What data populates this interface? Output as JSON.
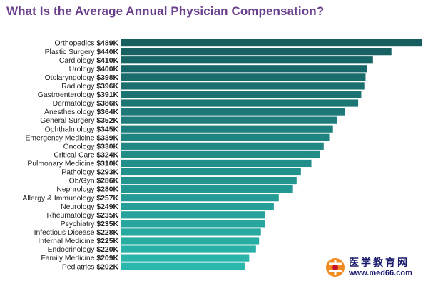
{
  "chart_data": {
    "type": "bar",
    "orientation": "horizontal",
    "title": "What Is the Average Annual Physician Compensation?",
    "categories": [
      "Orthopedics",
      "Plastic Surgery",
      "Cardiology",
      "Urology",
      "Otolaryngology",
      "Radiology",
      "Gastroenterology",
      "Dermatology",
      "Anesthesiology",
      "General Surgery",
      "Ophthalmology",
      "Emergency Medicine",
      "Oncology",
      "Critical Care",
      "Pulmonary Medicine",
      "Pathology",
      "Ob/Gyn",
      "Nephrology",
      "Allergy & Immunology",
      "Neurology",
      "Rheumatology",
      "Psychiatry",
      "Infectious Disease",
      "Internal Medicine",
      "Endocrinology",
      "Family Medicine",
      "Pediatrics"
    ],
    "value_labels": [
      "$489K",
      "$440K",
      "$410K",
      "$400K",
      "$398K",
      "$396K",
      "$391K",
      "$386K",
      "$364K",
      "$352K",
      "$345K",
      "$339K",
      "$330K",
      "$324K",
      "$310K",
      "$293K",
      "$286K",
      "$280K",
      "$257K",
      "$249K",
      "$235K",
      "$235K",
      "$228K",
      "$225K",
      "$220K",
      "$209K",
      "$202K"
    ],
    "values": [
      489,
      440,
      410,
      400,
      398,
      396,
      391,
      386,
      364,
      352,
      345,
      339,
      330,
      324,
      310,
      293,
      286,
      280,
      257,
      249,
      235,
      235,
      228,
      225,
      220,
      209,
      202
    ],
    "units": "$K",
    "color_top": "#175e60",
    "color_bottom": "#2ab7ac",
    "label_color": "#1f1f1f",
    "title_color": "#6a3f8c"
  },
  "watermark": {
    "brand": "医学教育网",
    "url": "www.med66.com"
  }
}
